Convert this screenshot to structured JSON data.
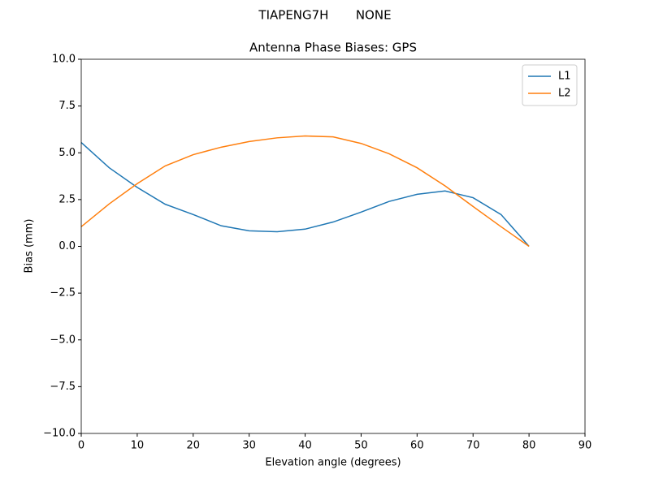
{
  "chart_data": {
    "type": "line",
    "suptitle": "TIAPENG7H       NONE",
    "title": "Antenna Phase Biases: GPS",
    "xlabel": "Elevation angle (degrees)",
    "ylabel": "Bias (mm)",
    "x": [
      0,
      5,
      10,
      15,
      20,
      25,
      30,
      35,
      40,
      45,
      50,
      55,
      60,
      65,
      70,
      75,
      80
    ],
    "series": [
      {
        "name": "L1",
        "color": "#1f77b4",
        "values": [
          5.55,
          4.2,
          3.15,
          2.25,
          1.7,
          1.1,
          0.83,
          0.78,
          0.92,
          1.3,
          1.83,
          2.4,
          2.78,
          2.96,
          2.6,
          1.7,
          0
        ]
      },
      {
        "name": "L2",
        "color": "#ff7f0e",
        "values": [
          1.05,
          2.27,
          3.35,
          4.3,
          4.9,
          5.3,
          5.6,
          5.8,
          5.9,
          5.85,
          5.5,
          4.95,
          4.2,
          3.23,
          2.13,
          1.05,
          0
        ]
      }
    ],
    "xlim": [
      0,
      90
    ],
    "xticks": [
      0,
      10,
      20,
      30,
      40,
      50,
      60,
      70,
      80,
      90
    ],
    "ylim": [
      -10,
      10
    ],
    "yticks": [
      {
        "value": -10,
        "label": "−10.0"
      },
      {
        "value": -7.5,
        "label": "−7.5"
      },
      {
        "value": -5,
        "label": "−5.0"
      },
      {
        "value": -2.5,
        "label": "−2.5"
      },
      {
        "value": 0,
        "label": "0.0"
      },
      2.5,
      {
        "value": 5,
        "label": "5.0"
      },
      7.5,
      {
        "value": 10,
        "label": "10.0"
      }
    ],
    "legend": "upper right",
    "grid": false
  }
}
